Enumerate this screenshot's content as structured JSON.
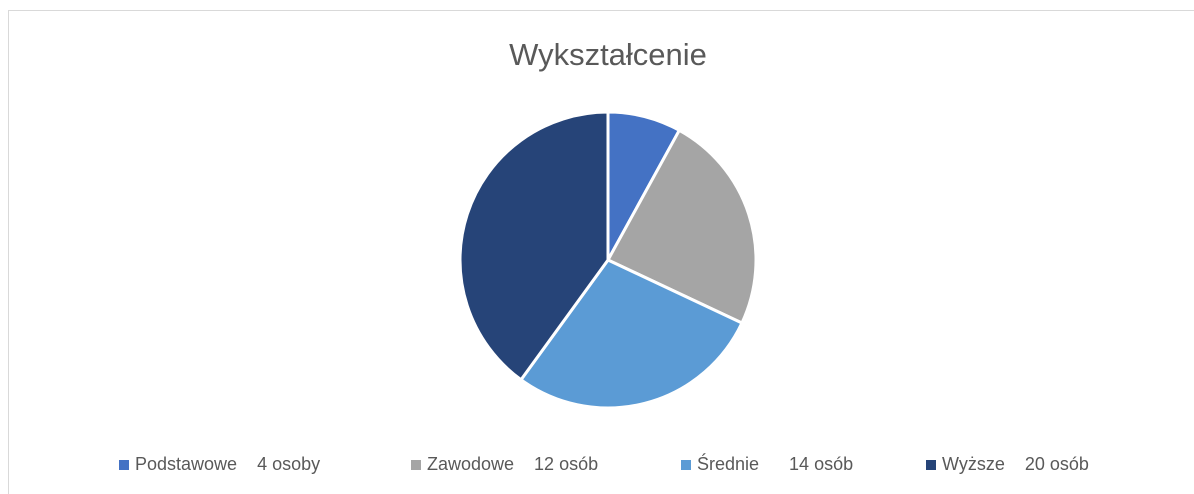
{
  "chart_data": {
    "type": "pie",
    "title": "Wykształcenie",
    "categories": [
      "Podstawowe    4 osoby",
      "Zawodowe    12 osób",
      "Średnie      14 osób",
      "Wyższe    20 osób"
    ],
    "values": [
      4,
      12,
      14,
      20
    ],
    "colors": [
      "#4472c4",
      "#a5a5a5",
      "#5b9bd5",
      "#264478"
    ],
    "legend": "bottom"
  }
}
